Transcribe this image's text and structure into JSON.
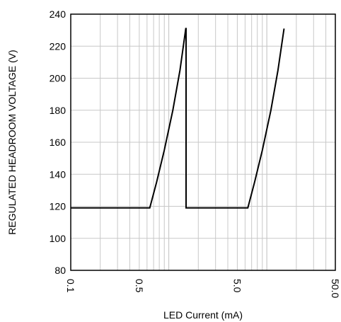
{
  "chart_data": {
    "type": "line",
    "title": "",
    "xlabel": "LED Current (mA)",
    "ylabel": "REGULATED HEADROOM VOLTAGE (V)",
    "x_scale": "log",
    "xlim": [
      0.1,
      50.0
    ],
    "ylim": [
      80,
      240
    ],
    "x_ticks": [
      0.1,
      0.5,
      5.0,
      50.0
    ],
    "x_tick_labels": [
      "0.1",
      "0.5",
      "5.0",
      "50.0"
    ],
    "y_ticks": [
      80,
      100,
      120,
      140,
      160,
      180,
      200,
      220,
      240
    ],
    "y_tick_labels": [
      "80",
      "100",
      "120",
      "140",
      "160",
      "180",
      "200",
      "220",
      "240"
    ],
    "grid": true,
    "series": [
      {
        "x": [
          0.1,
          0.64,
          0.75,
          0.9,
          1.1,
          1.3,
          1.49,
          1.5,
          1.5,
          1.51,
          6.4,
          7.5,
          9.0,
          11.0,
          13.0,
          15.0
        ],
        "y": [
          119,
          119,
          135,
          155,
          180,
          205,
          231,
          231,
          119,
          119,
          119,
          135,
          155,
          180,
          205,
          231
        ]
      }
    ],
    "line_color": "#000000"
  }
}
